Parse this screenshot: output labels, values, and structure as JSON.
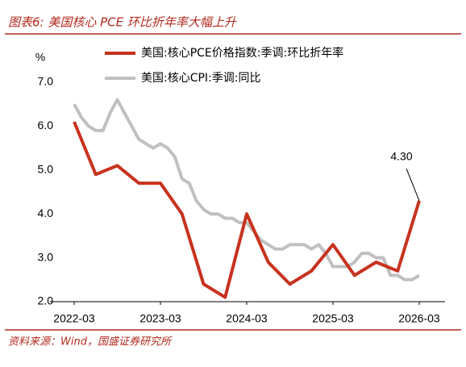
{
  "chart_data": {
    "type": "line",
    "title": "图表6:  美国核心 PCE 环比折年率大幅上升",
    "source": "资料来源：Wind，国盛证券研究所",
    "y_label": "%",
    "series": [
      {
        "name": "美国:核心PCE价格指数:季调:环比折年率",
        "color": "#c8321e",
        "x": [
          "2022-03",
          "2022-06",
          "2022-09",
          "2022-12",
          "2023-03",
          "2023-06",
          "2023-09",
          "2023-12",
          "2024-03",
          "2024-06",
          "2024-09",
          "2024-12",
          "2025-03",
          "2025-06",
          "2025-09",
          "2025-12",
          "2026-03"
        ],
        "values": [
          6.1,
          4.9,
          5.1,
          4.7,
          4.7,
          4.0,
          2.4,
          2.1,
          4.0,
          2.9,
          2.4,
          2.7,
          3.3,
          2.6,
          2.9,
          2.7,
          4.3
        ],
        "value_labels": [
          null,
          null,
          null,
          null,
          null,
          null,
          null,
          null,
          null,
          null,
          null,
          null,
          null,
          null,
          null,
          null,
          "4.30"
        ]
      },
      {
        "name": "美国:核心CPI:季调:同比",
        "color": "#c0c0c0",
        "x": [
          "2022-03",
          "2022-04",
          "2022-05",
          "2022-06",
          "2022-07",
          "2022-08",
          "2022-09",
          "2022-10",
          "2022-11",
          "2022-12",
          "2023-01",
          "2023-02",
          "2023-03",
          "2023-04",
          "2023-05",
          "2023-06",
          "2023-07",
          "2023-08",
          "2023-09",
          "2023-10",
          "2023-11",
          "2023-12",
          "2024-01",
          "2024-02",
          "2024-03",
          "2024-04",
          "2024-05",
          "2024-06",
          "2024-07",
          "2024-08",
          "2024-09",
          "2024-10",
          "2024-11",
          "2024-12",
          "2025-01",
          "2025-02",
          "2025-03",
          "2025-04",
          "2025-05",
          "2025-06",
          "2025-07",
          "2025-08",
          "2025-09",
          "2025-10",
          "2025-11",
          "2025-12",
          "2026-01",
          "2026-02",
          "2026-03"
        ],
        "values": [
          6.5,
          6.2,
          6.0,
          5.9,
          5.9,
          6.3,
          6.6,
          6.3,
          6.0,
          5.7,
          5.6,
          5.5,
          5.6,
          5.5,
          5.3,
          4.8,
          4.7,
          4.3,
          4.1,
          4.0,
          4.0,
          3.9,
          3.9,
          3.8,
          3.8,
          3.6,
          3.4,
          3.3,
          3.2,
          3.2,
          3.3,
          3.3,
          3.3,
          3.2,
          3.3,
          3.1,
          2.8,
          2.8,
          2.8,
          2.9,
          3.1,
          3.1,
          3.0,
          3.0,
          2.6,
          2.6,
          2.5,
          2.5,
          2.6
        ]
      }
    ],
    "xlim": [
      "2022-03",
      "2026-03"
    ],
    "xticks": [
      "2022-03",
      "2023-03",
      "2024-03",
      "2025-03",
      "2026-03"
    ],
    "ylim": [
      2,
      7
    ],
    "yticks": [
      {
        "value": 2,
        "label": "2.0"
      },
      {
        "value": 3,
        "label": "3.0"
      },
      {
        "value": 4,
        "label": "4.0"
      },
      {
        "value": 5,
        "label": "5.0"
      },
      {
        "value": 6,
        "label": "6.0"
      },
      {
        "value": 7,
        "label": "7.0"
      }
    ],
    "grid": false
  }
}
